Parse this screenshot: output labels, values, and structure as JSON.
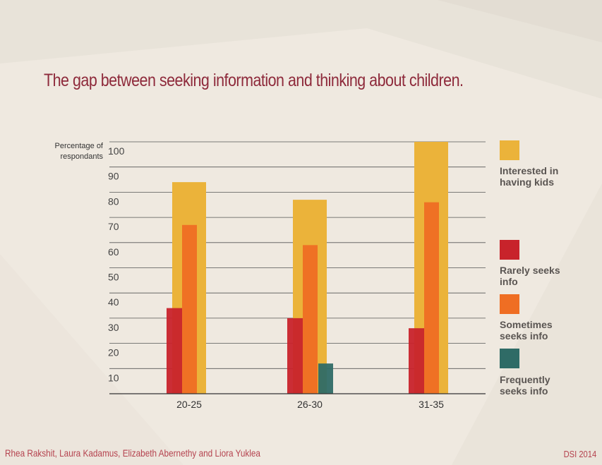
{
  "title": "The gap between seeking information and thinking about children.",
  "credits": "Rhea Rakshit, Laura Kadamus, Elizabeth Abernethy and Liora Yuklea",
  "tag": "DSI 2014",
  "colors": {
    "interested": "#ebb33a",
    "rarely": "#c8232b",
    "sometimes": "#ef6e23",
    "frequently": "#2f6b66"
  },
  "legend": [
    {
      "key": "interested",
      "label": "Interested in having kids"
    },
    {
      "key": "rarely",
      "label": "Rarely seeks info"
    },
    {
      "key": "sometimes",
      "label": "Sometimes seeks info"
    },
    {
      "key": "frequently",
      "label": "Frequently seeks info"
    }
  ],
  "chart_data": {
    "type": "bar",
    "ylabel": "Percentage of respondants",
    "ylim": [
      0,
      100
    ],
    "yticks": [
      10,
      20,
      30,
      40,
      50,
      60,
      70,
      80,
      90,
      100
    ],
    "grid": true,
    "legend_position": "right",
    "categories": [
      "20-25",
      "26-30",
      "31-35"
    ],
    "series": [
      {
        "name": "Interested in having kids",
        "key": "interested",
        "values": [
          84,
          77,
          100
        ]
      },
      {
        "name": "Rarely seeks info",
        "key": "rarely",
        "values": [
          34,
          30,
          26
        ]
      },
      {
        "name": "Sometimes seeks info",
        "key": "sometimes",
        "values": [
          67,
          59,
          76
        ]
      },
      {
        "name": "Frequently seeks info",
        "key": "frequently",
        "values": [
          0,
          12,
          0
        ]
      }
    ]
  }
}
